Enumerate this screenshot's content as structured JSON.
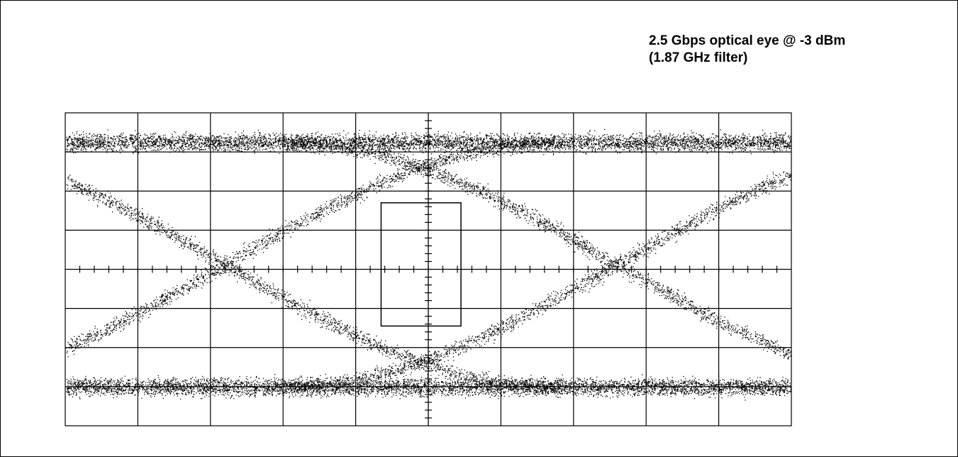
{
  "chart_data": {
    "type": "scatter",
    "title": "2.5 Gbps optical eye @ -3 dBm",
    "subtitle": "(1.87 GHz filter)",
    "xlabel": "",
    "ylabel": "",
    "grid": true,
    "graticule": {
      "x_divisions": 10,
      "y_divisions": 8,
      "minor_ticks_per_division": 5
    },
    "xlim": [
      0,
      10
    ],
    "ylim": [
      -4,
      4
    ],
    "levels": {
      "one_level": 3.25,
      "zero_level": -3.0
    },
    "crossings_x": [
      2.2,
      7.6
    ],
    "mask": {
      "x": [
        4.35,
        5.45
      ],
      "y": [
        -1.45,
        1.7
      ]
    },
    "colors": {
      "trace": "#000000",
      "grid": "#000000",
      "background": "#ffffff"
    }
  }
}
